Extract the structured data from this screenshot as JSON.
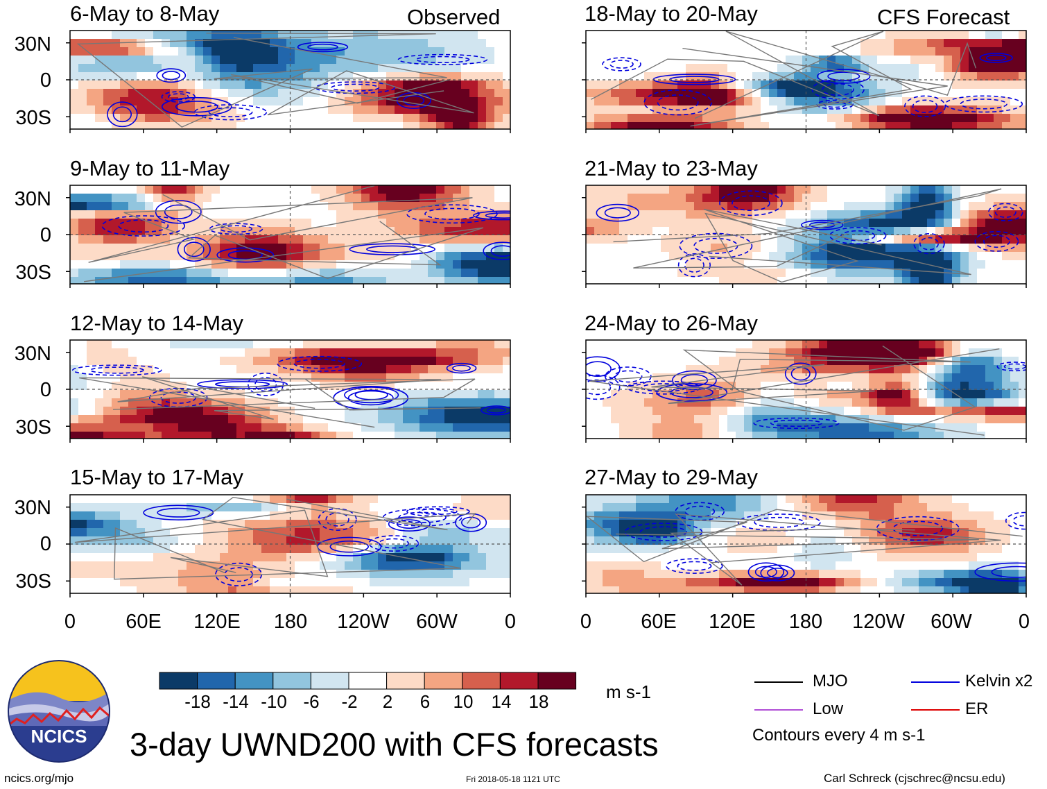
{
  "panel_titles": [
    "6-May to 8-May",
    "9-May to 11-May",
    "12-May to 14-May",
    "15-May to 17-May",
    "18-May to 20-May",
    "21-May to 23-May",
    "24-May to 26-May",
    "27-May to 29-May"
  ],
  "observed_label": "Observed",
  "forecast_label": "CFS Forecast",
  "lat_labels": [
    "30N",
    "0",
    "30S"
  ],
  "lon_labels": [
    "0",
    "60E",
    "120E",
    "180",
    "120W",
    "60W",
    "0"
  ],
  "colorbar": {
    "colors": [
      "#0b3a67",
      "#2166ac",
      "#4393c3",
      "#92c5de",
      "#d1e5f0",
      "#ffffff",
      "#fddbc7",
      "#f4a582",
      "#d6604d",
      "#b2182b",
      "#67001f"
    ],
    "labels": [
      "-18",
      "-14",
      "-10",
      "-6",
      "-2",
      "2",
      "6",
      "10",
      "14",
      "18"
    ],
    "units": "m s-1"
  },
  "legend": {
    "items": [
      {
        "label": "MJO",
        "color": "#000000"
      },
      {
        "label": "Kelvin x2",
        "color": "#0000dd"
      },
      {
        "label": "Low",
        "color": "#b14fd6"
      },
      {
        "label": "ER",
        "color": "#dd0000"
      }
    ],
    "contour_note": "Contours every 4 m s-1"
  },
  "title": "3-day UWND200 with CFS forecasts",
  "logo_text": "NCICS",
  "footer": {
    "left": "ncics.org/mjo",
    "center": "Fri 2018-05-18 1121 UTC",
    "right": "Carl Schreck (cjschrec@ncsu.edu)"
  },
  "chart_data": {
    "type": "heatmap",
    "variable": "200-hPa zonal wind anomaly (UWND200), 3-day means",
    "units": "m s-1",
    "contour_interval": 4,
    "x_axis": {
      "range": [
        0,
        360
      ],
      "ticks": [
        "0",
        "60E",
        "120E",
        "180",
        "120W",
        "60W",
        "0"
      ]
    },
    "y_axis": {
      "range": [
        -40,
        40
      ],
      "ticks": [
        "30N",
        "0",
        "30S"
      ]
    },
    "color_levels": [
      -18,
      -14,
      -10,
      -6,
      -2,
      2,
      6,
      10,
      14,
      18
    ],
    "panels": [
      {
        "title": "6-May to 8-May",
        "source": "Observed"
      },
      {
        "title": "9-May to 11-May",
        "source": "Observed"
      },
      {
        "title": "12-May to 14-May",
        "source": "Observed"
      },
      {
        "title": "15-May to 17-May",
        "source": "Observed"
      },
      {
        "title": "18-May to 20-May",
        "source": "CFS Forecast"
      },
      {
        "title": "21-May to 23-May",
        "source": "CFS Forecast"
      },
      {
        "title": "24-May to 26-May",
        "source": "CFS Forecast"
      },
      {
        "title": "27-May to 29-May",
        "source": "CFS Forecast"
      }
    ]
  }
}
